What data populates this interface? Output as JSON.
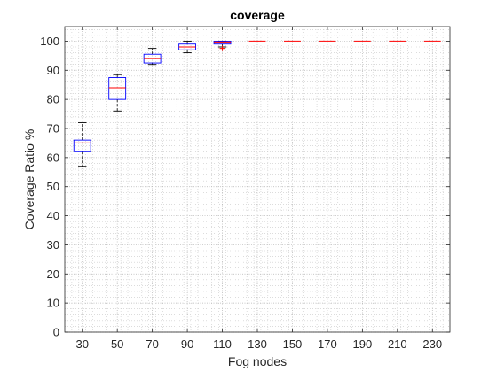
{
  "chart_data": {
    "type": "box",
    "title": "coverage",
    "xlabel": "Fog nodes",
    "ylabel": "Coverage Ratio %",
    "categories": [
      "30",
      "50",
      "70",
      "90",
      "110",
      "130",
      "150",
      "170",
      "190",
      "210",
      "230"
    ],
    "boxes": [
      {
        "x": "30",
        "whisker_low": 57,
        "q1": 62,
        "median": 65,
        "q3": 66,
        "whisker_high": 72,
        "outliers": []
      },
      {
        "x": "50",
        "whisker_low": 76,
        "q1": 80,
        "median": 84,
        "q3": 87.5,
        "whisker_high": 88.5,
        "outliers": []
      },
      {
        "x": "70",
        "whisker_low": 92,
        "q1": 92.5,
        "median": 94,
        "q3": 95.5,
        "whisker_high": 97.5,
        "outliers": []
      },
      {
        "x": "90",
        "whisker_low": 96,
        "q1": 97,
        "median": 98,
        "q3": 99,
        "whisker_high": 100,
        "outliers": []
      },
      {
        "x": "110",
        "whisker_low": 98,
        "q1": 99,
        "median": 99.7,
        "q3": 100,
        "whisker_high": 100,
        "outliers": [
          97.5
        ]
      },
      {
        "x": "130",
        "whisker_low": 100,
        "q1": 100,
        "median": 100,
        "q3": 100,
        "whisker_high": 100,
        "outliers": []
      },
      {
        "x": "150",
        "whisker_low": 100,
        "q1": 100,
        "median": 100,
        "q3": 100,
        "whisker_high": 100,
        "outliers": []
      },
      {
        "x": "170",
        "whisker_low": 100,
        "q1": 100,
        "median": 100,
        "q3": 100,
        "whisker_high": 100,
        "outliers": []
      },
      {
        "x": "190",
        "whisker_low": 100,
        "q1": 100,
        "median": 100,
        "q3": 100,
        "whisker_high": 100,
        "outliers": []
      },
      {
        "x": "210",
        "whisker_low": 100,
        "q1": 100,
        "median": 100,
        "q3": 100,
        "whisker_high": 100,
        "outliers": []
      },
      {
        "x": "230",
        "whisker_low": 100,
        "q1": 100,
        "median": 100,
        "q3": 100,
        "whisker_high": 100,
        "outliers": []
      }
    ],
    "ylim": [
      0,
      105
    ],
    "yticks": [
      0,
      10,
      20,
      30,
      40,
      50,
      60,
      70,
      80,
      90,
      100
    ],
    "grid": true,
    "minor_grid": true,
    "colors": {
      "box": "#0000ff",
      "median": "#ff0000",
      "whisker": "#000000",
      "outlier": "#ff0000",
      "grid": "#c8c8c8",
      "axis": "#262626"
    }
  }
}
